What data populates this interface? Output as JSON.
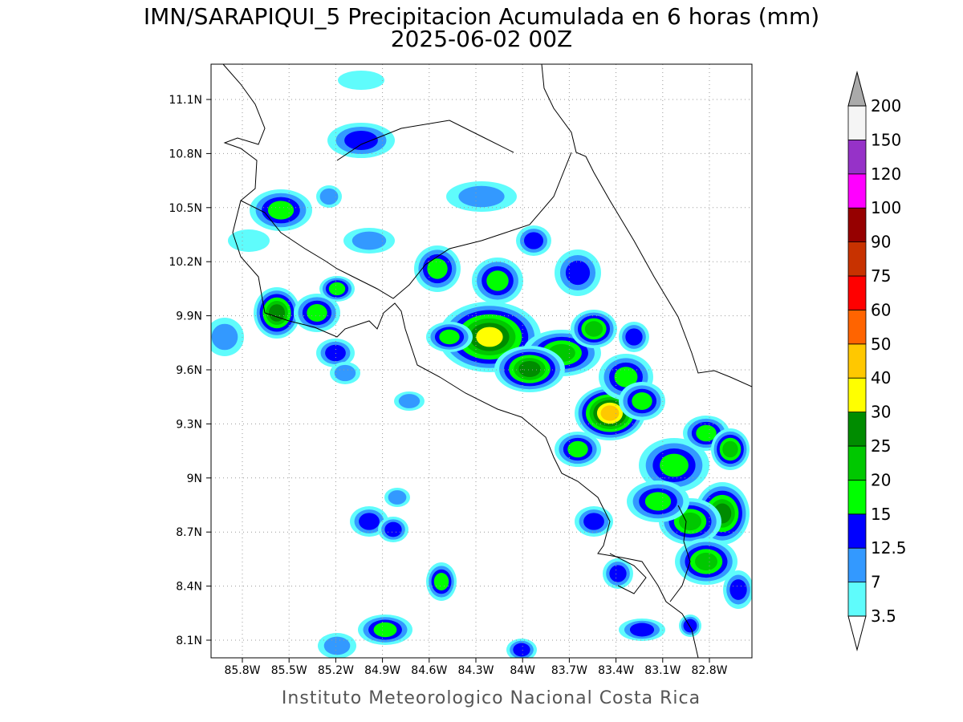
{
  "header": {
    "title": "IMN/SARAPIQUI_5 Precipitacion Acumulada en 6 horas (mm)",
    "subtitle": "2025-06-02 00Z"
  },
  "map": {
    "lon_labels": [
      "85.8W",
      "85.5W",
      "85.2W",
      "84.9W",
      "84.6W",
      "84.3W",
      "84W",
      "83.7W",
      "83.4W",
      "83.1W",
      "82.8W"
    ],
    "lat_labels": [
      "11.1N",
      "10.8N",
      "10.5N",
      "10.2N",
      "9.9N",
      "9.6N",
      "9.3N",
      "9N",
      "8.7N",
      "8.4N",
      "8.1N"
    ]
  },
  "colorbar": {
    "labels": [
      "3.5",
      "7",
      "12.5",
      "15",
      "20",
      "25",
      "30",
      "40",
      "50",
      "60",
      "75",
      "90",
      "100",
      "120",
      "150",
      "200"
    ],
    "colors": [
      "#5ffcfc",
      "#3399ff",
      "#0000ff",
      "#00ff00",
      "#00c800",
      "#008c00",
      "#ffff00",
      "#ffc800",
      "#ff6400",
      "#ff0000",
      "#c83200",
      "#960000",
      "#ff00ff",
      "#9632c8",
      "#f5f5f5"
    ],
    "over_color": "#aaaaaa",
    "under_color": "#ffffff"
  },
  "footer": {
    "credit": "Instituto Meteorologico Nacional Costa Rica"
  }
}
